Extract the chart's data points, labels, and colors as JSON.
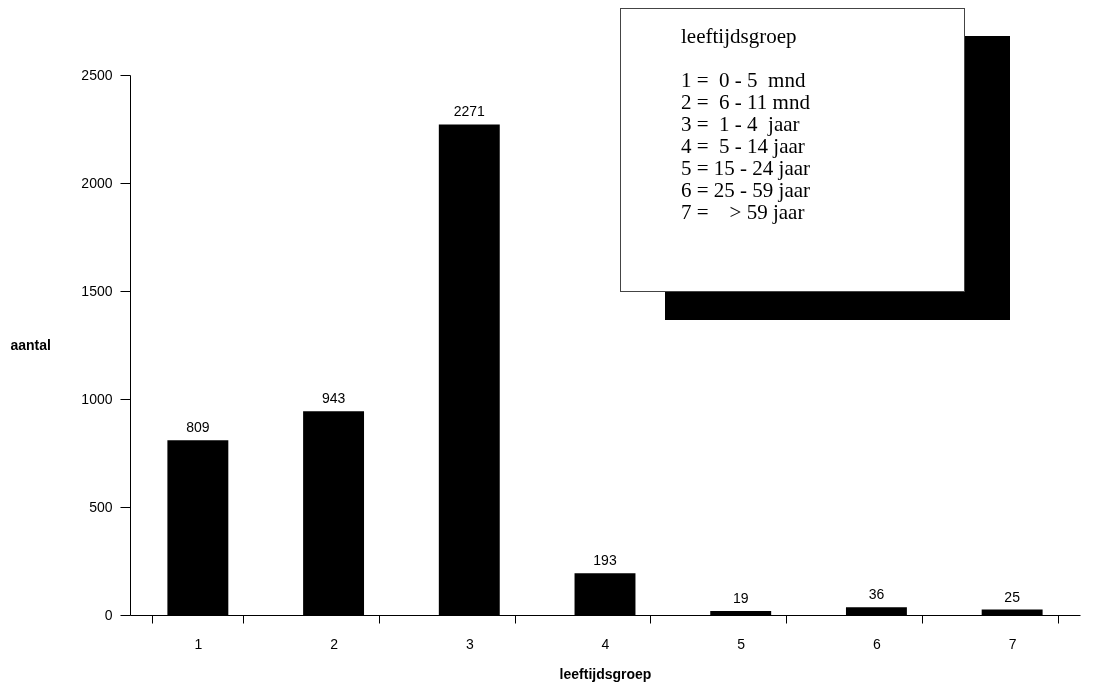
{
  "chart_data": {
    "type": "bar",
    "xlabel": "leeftijdsgroep",
    "ylabel": "aantal",
    "categories": [
      "1",
      "2",
      "3",
      "4",
      "5",
      "6",
      "7"
    ],
    "values": [
      809,
      943,
      2271,
      193,
      19,
      36,
      25
    ],
    "color": "#000000",
    "ylim": [
      0,
      2500
    ],
    "yticks": [
      0,
      500,
      1000,
      1500,
      2000,
      2500
    ],
    "grid": false,
    "data_labels": true,
    "annotations": [
      "leeftijdsgroep",
      "1 =  0 - 5  mnd",
      "2 =  6 - 11 mnd",
      "3 =  1 - 4  jaar",
      "4 =  5 - 14 jaar",
      "5 = 15 - 24 jaar",
      "6 = 25 - 59 jaar",
      "7 =    > 59 jaar"
    ]
  }
}
